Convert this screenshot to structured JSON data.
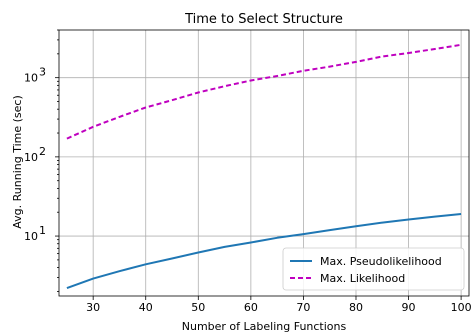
{
  "chart_data": {
    "type": "line",
    "title": "Time to Select Structure",
    "xlabel": "Number of Labeling Functions",
    "ylabel": "Avg. Running Time (sec)",
    "xlim": [
      23.5,
      101.5
    ],
    "ylim": [
      1.75,
      4000
    ],
    "yscale": "log",
    "grid": true,
    "legend_position": "lower-right",
    "x_ticks": [
      30,
      40,
      50,
      60,
      70,
      80,
      90,
      100
    ],
    "y_ticks": [
      {
        "value": 10,
        "base": "10",
        "exp": "1"
      },
      {
        "value": 100,
        "base": "10",
        "exp": "2"
      },
      {
        "value": 1000,
        "base": "10",
        "exp": "3"
      }
    ],
    "series": [
      {
        "name": "Max. Pseudolikelihood",
        "color": "#1f77b4",
        "dash": "solid",
        "x": [
          25,
          30,
          35,
          40,
          45,
          50,
          55,
          60,
          65,
          70,
          75,
          80,
          85,
          90,
          95,
          100
        ],
        "y": [
          2.2,
          2.9,
          3.6,
          4.4,
          5.2,
          6.2,
          7.3,
          8.3,
          9.5,
          10.6,
          11.9,
          13.3,
          14.8,
          16.2,
          17.6,
          19.0
        ]
      },
      {
        "name": "Max. Likelihood",
        "color": "#bf00bf",
        "dash": "dashed",
        "x": [
          25,
          30,
          35,
          40,
          45,
          50,
          55,
          60,
          65,
          70,
          75,
          80,
          85,
          90,
          95,
          100
        ],
        "y": [
          170,
          240,
          320,
          420,
          520,
          650,
          780,
          920,
          1050,
          1220,
          1380,
          1580,
          1850,
          2050,
          2300,
          2600
        ]
      }
    ]
  }
}
